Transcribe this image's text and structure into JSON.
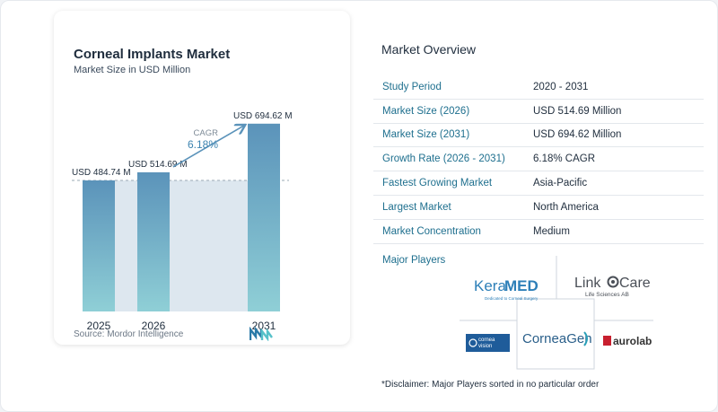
{
  "chart_data": {
    "type": "bar",
    "title": "Corneal Implants Market",
    "subtitle": "Market Size in USD Million",
    "categories": [
      "2025",
      "2026",
      "2031"
    ],
    "values": [
      484.74,
      514.69,
      694.62
    ],
    "data_labels": [
      "USD 484.74 M",
      "USD 514.69 M",
      "USD 694.62 M"
    ],
    "cagr_label": "CAGR",
    "cagr_value": "6.18%",
    "colors": {
      "bar_top": "#5b93ba",
      "bar_bottom": "#8fcfd6",
      "band": "#dde7ef",
      "arrow": "#5b93ba"
    }
  },
  "source": "Source:  Mordor Intelligence",
  "overview": {
    "title": "Market Overview",
    "rows": [
      {
        "label": "Study Period",
        "value": "2020 - 2031"
      },
      {
        "label": "Market Size (2026)",
        "value": "USD 514.69 Million"
      },
      {
        "label": "Market Size (2031)",
        "value": "USD 694.62 Million"
      },
      {
        "label": "Growth Rate (2026 - 2031)",
        "value": "6.18% CAGR"
      },
      {
        "label": "Fastest Growing Market",
        "value": "Asia-Pacific"
      },
      {
        "label": "Largest Market",
        "value": "North America"
      },
      {
        "label": "Market Concentration",
        "value": "Medium"
      }
    ]
  },
  "major_players": {
    "title": "Major Players",
    "logos": [
      {
        "name": "KeraMED",
        "text_a": "Kera",
        "text_b": "MED",
        "tagline": "Dedicated to Corneal Surgery"
      },
      {
        "name": "LinkoCare",
        "text_a": "Link",
        "text_b": "Care",
        "tagline": "Life Sciences AB"
      },
      {
        "name": "CorneaGen",
        "text": "CorneaGen"
      },
      {
        "name": "Cornea Vision",
        "text_a": "cornea",
        "text_b": "vision"
      },
      {
        "name": "aurolab",
        "text": "aurolab"
      }
    ]
  },
  "disclaimer": "*Disclaimer: Major Players sorted in no particular order"
}
